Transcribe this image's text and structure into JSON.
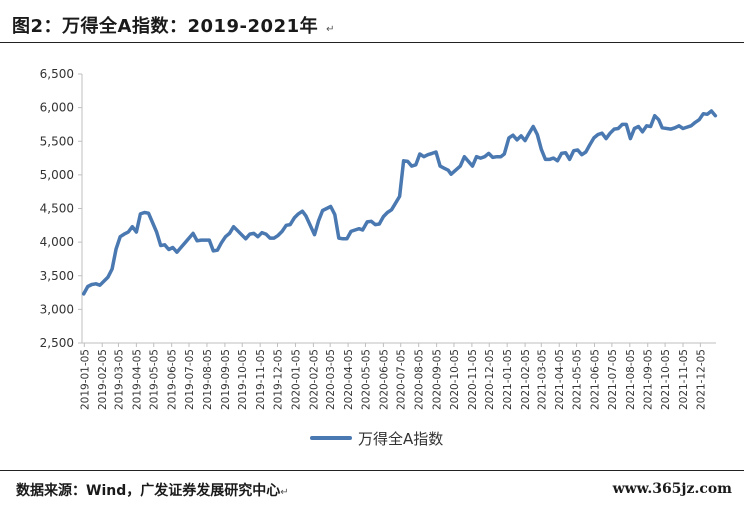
{
  "header": {
    "title": "图2：万得全A指数：2019-2021年",
    "para_mark": "↵"
  },
  "footer": {
    "source": "数据来源：Wind，广发证券发展研究中心",
    "para_mark": "↵",
    "watermark": "www.365jz.com"
  },
  "chart_data": {
    "type": "line",
    "title": "",
    "xlabel": "",
    "ylabel": "",
    "ylim": [
      2500,
      6500
    ],
    "yticks": [
      2500,
      3000,
      3500,
      4000,
      4500,
      5000,
      5500,
      6000,
      6500
    ],
    "ytick_labels": [
      "2,500",
      "3,000",
      "3,500",
      "4,000",
      "4,500",
      "5,000",
      "5,500",
      "6,000",
      "6,500"
    ],
    "xtick_labels": [
      "2019-01-05",
      "2019-02-05",
      "2019-03-05",
      "2019-04-05",
      "2019-05-05",
      "2019-06-05",
      "2019-07-05",
      "2019-08-05",
      "2019-09-05",
      "2019-10-05",
      "2019-11-05",
      "2019-12-05",
      "2020-01-05",
      "2020-02-05",
      "2020-03-05",
      "2020-04-05",
      "2020-05-05",
      "2020-06-05",
      "2020-07-05",
      "2020-08-05",
      "2020-09-05",
      "2020-10-05",
      "2020-11-05",
      "2020-12-05",
      "2021-01-05",
      "2021-02-05",
      "2021-03-05",
      "2021-04-05",
      "2021-05-05",
      "2021-06-05",
      "2021-07-05",
      "2021-08-05",
      "2021-09-05",
      "2021-10-05",
      "2021-11-05",
      "2021-12-05"
    ],
    "grid": false,
    "legend_position": "bottom",
    "color": "#4a78b0",
    "series": [
      {
        "name": "万得全A指数",
        "x": [
          "2019-01-04",
          "2019-01-11",
          "2019-01-18",
          "2019-01-25",
          "2019-02-01",
          "2019-02-15",
          "2019-02-22",
          "2019-03-01",
          "2019-03-08",
          "2019-03-15",
          "2019-03-22",
          "2019-03-29",
          "2019-04-05",
          "2019-04-12",
          "2019-04-19",
          "2019-04-26",
          "2019-05-10",
          "2019-05-17",
          "2019-05-24",
          "2019-05-31",
          "2019-06-07",
          "2019-06-14",
          "2019-06-21",
          "2019-06-28",
          "2019-07-05",
          "2019-07-12",
          "2019-07-19",
          "2019-07-26",
          "2019-08-02",
          "2019-08-09",
          "2019-08-16",
          "2019-08-23",
          "2019-08-30",
          "2019-09-06",
          "2019-09-13",
          "2019-09-20",
          "2019-09-27",
          "2019-10-11",
          "2019-10-18",
          "2019-10-25",
          "2019-11-01",
          "2019-11-08",
          "2019-11-15",
          "2019-11-22",
          "2019-11-29",
          "2019-12-06",
          "2019-12-13",
          "2019-12-20",
          "2019-12-27",
          "2020-01-03",
          "2020-01-10",
          "2020-01-17",
          "2020-01-23",
          "2020-02-07",
          "2020-02-14",
          "2020-02-21",
          "2020-02-28",
          "2020-03-06",
          "2020-03-13",
          "2020-03-20",
          "2020-03-27",
          "2020-04-03",
          "2020-04-10",
          "2020-04-17",
          "2020-04-24",
          "2020-04-30",
          "2020-05-08",
          "2020-05-15",
          "2020-05-22",
          "2020-05-29",
          "2020-06-05",
          "2020-06-12",
          "2020-06-19",
          "2020-06-24",
          "2020-07-03",
          "2020-07-10",
          "2020-07-17",
          "2020-07-24",
          "2020-07-31",
          "2020-08-07",
          "2020-08-14",
          "2020-08-21",
          "2020-08-28",
          "2020-09-04",
          "2020-09-11",
          "2020-09-18",
          "2020-09-25",
          "2020-09-30",
          "2020-10-16",
          "2020-10-23",
          "2020-10-30",
          "2020-11-06",
          "2020-11-13",
          "2020-11-20",
          "2020-11-27",
          "2020-12-04",
          "2020-12-11",
          "2020-12-18",
          "2020-12-25",
          "2020-12-31",
          "2021-01-08",
          "2021-01-15",
          "2021-01-22",
          "2021-01-29",
          "2021-02-05",
          "2021-02-10",
          "2021-02-19",
          "2021-02-26",
          "2021-03-05",
          "2021-03-12",
          "2021-03-19",
          "2021-03-26",
          "2021-04-02",
          "2021-04-09",
          "2021-04-16",
          "2021-04-23",
          "2021-04-30",
          "2021-05-07",
          "2021-05-14",
          "2021-05-21",
          "2021-05-28",
          "2021-06-04",
          "2021-06-11",
          "2021-06-18",
          "2021-06-25",
          "2021-07-02",
          "2021-07-09",
          "2021-07-16",
          "2021-07-23",
          "2021-07-30",
          "2021-08-06",
          "2021-08-13",
          "2021-08-20",
          "2021-08-27",
          "2021-09-03",
          "2021-09-10",
          "2021-09-17",
          "2021-09-24",
          "2021-09-30",
          "2021-10-15",
          "2021-10-22",
          "2021-10-29",
          "2021-11-05",
          "2021-11-12",
          "2021-11-19",
          "2021-11-26",
          "2021-12-03",
          "2021-12-10",
          "2021-12-17",
          "2021-12-24",
          "2021-12-31"
        ],
        "values": [
          3230,
          3340,
          3370,
          3380,
          3360,
          3480,
          3600,
          3900,
          4080,
          4120,
          4150,
          4230,
          4150,
          4420,
          4440,
          4430,
          4150,
          3950,
          3960,
          3890,
          3920,
          3850,
          3920,
          3990,
          4060,
          4130,
          4020,
          4030,
          4030,
          4030,
          3870,
          3880,
          3990,
          4080,
          4130,
          4230,
          4170,
          4050,
          4120,
          4130,
          4080,
          4140,
          4120,
          4060,
          4060,
          4100,
          4160,
          4250,
          4260,
          4360,
          4420,
          4460,
          4390,
          4110,
          4320,
          4470,
          4500,
          4530,
          4410,
          4060,
          4050,
          4050,
          4160,
          4180,
          4200,
          4180,
          4300,
          4310,
          4260,
          4270,
          4380,
          4440,
          4480,
          4550,
          4680,
          5210,
          5200,
          5130,
          5150,
          5310,
          5270,
          5300,
          5320,
          5340,
          5130,
          5100,
          5070,
          5010,
          5130,
          5270,
          5200,
          5130,
          5270,
          5250,
          5270,
          5320,
          5260,
          5270,
          5270,
          5310,
          5550,
          5590,
          5520,
          5580,
          5510,
          5590,
          5720,
          5600,
          5380,
          5230,
          5230,
          5250,
          5210,
          5320,
          5330,
          5230,
          5360,
          5370,
          5300,
          5340,
          5450,
          5550,
          5600,
          5620,
          5540,
          5620,
          5680,
          5690,
          5750,
          5750,
          5540,
          5690,
          5720,
          5640,
          5730,
          5720,
          5880,
          5820,
          5700,
          5680,
          5700,
          5730,
          5690,
          5710,
          5730,
          5780,
          5820,
          5910,
          5900,
          5950,
          5880
        ]
      }
    ]
  }
}
